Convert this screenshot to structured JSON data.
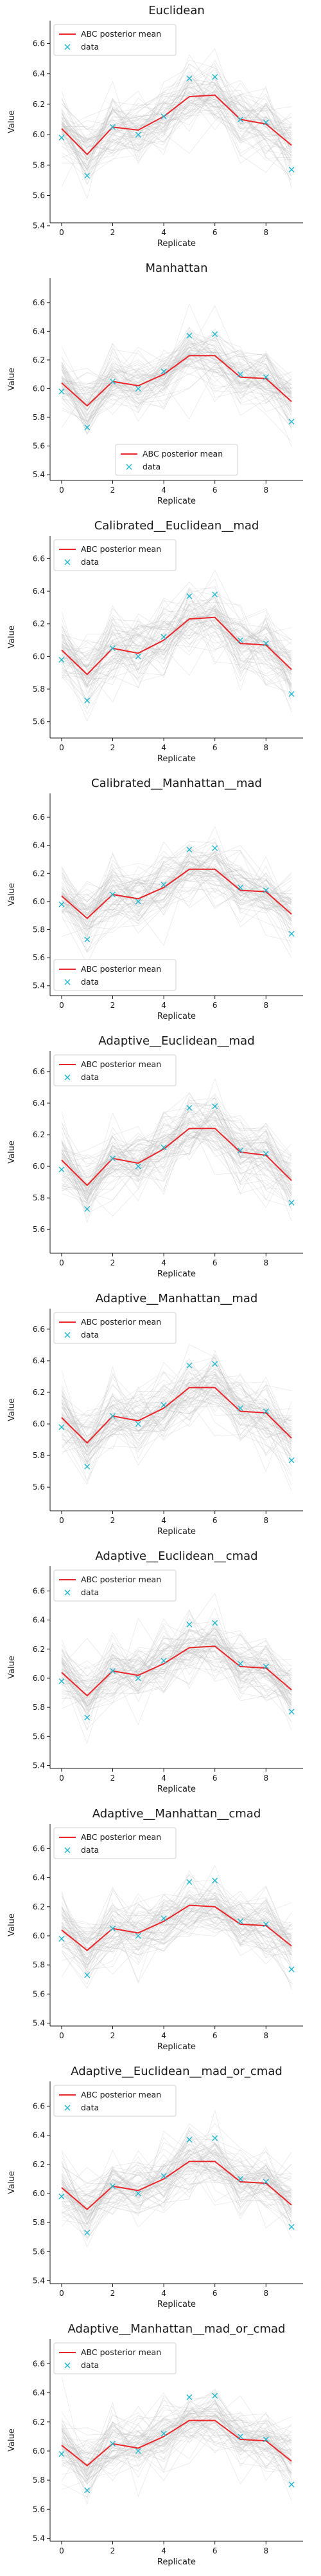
{
  "colors": {
    "mean_line": "#e8262b",
    "data_marker": "#22b8cf",
    "background_lines": "#bfbfbf"
  },
  "legend": {
    "mean_label": "ABC posterior mean",
    "data_label": "data"
  },
  "chart_data": [
    {
      "type": "line",
      "title": "Euclidean",
      "xlabel": "Replicate",
      "ylabel": "Value",
      "x": [
        0,
        1,
        2,
        3,
        4,
        5,
        6,
        7,
        8,
        9
      ],
      "xticks": [
        0,
        2,
        4,
        6,
        8
      ],
      "yticks": [
        5.4,
        5.6,
        5.8,
        6.0,
        6.2,
        6.4,
        6.6
      ],
      "xlim": [
        -0.45,
        9.45
      ],
      "ylim": [
        5.42,
        6.75
      ],
      "legend_position": "upper-left",
      "grid": false,
      "series": [
        {
          "name": "ABC posterior mean",
          "values": [
            6.04,
            5.87,
            6.05,
            6.03,
            6.12,
            6.25,
            6.26,
            6.1,
            6.07,
            5.93
          ]
        },
        {
          "name": "data",
          "values": [
            5.98,
            5.73,
            6.05,
            6.0,
            6.12,
            6.37,
            6.38,
            6.1,
            6.08,
            5.77
          ]
        }
      ]
    },
    {
      "type": "line",
      "title": "Manhattan",
      "xlabel": "Replicate",
      "ylabel": "Value",
      "x": [
        0,
        1,
        2,
        3,
        4,
        5,
        6,
        7,
        8,
        9
      ],
      "xticks": [
        0,
        2,
        4,
        6,
        8
      ],
      "yticks": [
        5.4,
        5.6,
        5.8,
        6.0,
        6.2,
        6.4,
        6.6
      ],
      "xlim": [
        -0.45,
        9.45
      ],
      "ylim": [
        5.36,
        6.77
      ],
      "legend_position": "lower-center",
      "grid": false,
      "series": [
        {
          "name": "ABC posterior mean",
          "values": [
            6.04,
            5.88,
            6.05,
            6.02,
            6.1,
            6.23,
            6.23,
            6.08,
            6.07,
            5.91
          ]
        },
        {
          "name": "data",
          "values": [
            5.98,
            5.73,
            6.05,
            6.0,
            6.12,
            6.37,
            6.38,
            6.1,
            6.08,
            5.77
          ]
        }
      ]
    },
    {
      "type": "line",
      "title": "Calibrated__Euclidean__mad",
      "xlabel": "Replicate",
      "ylabel": "Value",
      "x": [
        0,
        1,
        2,
        3,
        4,
        5,
        6,
        7,
        8,
        9
      ],
      "xticks": [
        0,
        2,
        4,
        6,
        8
      ],
      "yticks": [
        5.6,
        5.8,
        6.0,
        6.2,
        6.4,
        6.6
      ],
      "xlim": [
        -0.45,
        9.45
      ],
      "ylim": [
        5.5,
        6.74
      ],
      "legend_position": "upper-left",
      "grid": false,
      "series": [
        {
          "name": "ABC posterior mean",
          "values": [
            6.04,
            5.89,
            6.05,
            6.02,
            6.1,
            6.23,
            6.24,
            6.08,
            6.07,
            5.92
          ]
        },
        {
          "name": "data",
          "values": [
            5.98,
            5.73,
            6.05,
            6.0,
            6.12,
            6.37,
            6.38,
            6.1,
            6.08,
            5.77
          ]
        }
      ]
    },
    {
      "type": "line",
      "title": "Calibrated__Manhattan__mad",
      "xlabel": "Replicate",
      "ylabel": "Value",
      "x": [
        0,
        1,
        2,
        3,
        4,
        5,
        6,
        7,
        8,
        9
      ],
      "xticks": [
        0,
        2,
        4,
        6,
        8
      ],
      "yticks": [
        5.4,
        5.6,
        5.8,
        6.0,
        6.2,
        6.4,
        6.6
      ],
      "xlim": [
        -0.45,
        9.45
      ],
      "ylim": [
        5.33,
        6.77
      ],
      "legend_position": "lower-left",
      "grid": false,
      "series": [
        {
          "name": "ABC posterior mean",
          "values": [
            6.04,
            5.88,
            6.05,
            6.02,
            6.1,
            6.23,
            6.23,
            6.08,
            6.07,
            5.91
          ]
        },
        {
          "name": "data",
          "values": [
            5.98,
            5.73,
            6.05,
            6.0,
            6.12,
            6.37,
            6.38,
            6.1,
            6.08,
            5.77
          ]
        }
      ]
    },
    {
      "type": "line",
      "title": "Adaptive__Euclidean__mad",
      "xlabel": "Replicate",
      "ylabel": "Value",
      "x": [
        0,
        1,
        2,
        3,
        4,
        5,
        6,
        7,
        8,
        9
      ],
      "xticks": [
        0,
        2,
        4,
        6,
        8
      ],
      "yticks": [
        5.6,
        5.8,
        6.0,
        6.2,
        6.4,
        6.6
      ],
      "xlim": [
        -0.45,
        9.45
      ],
      "ylim": [
        5.45,
        6.73
      ],
      "legend_position": "upper-left",
      "grid": false,
      "series": [
        {
          "name": "ABC posterior mean",
          "values": [
            6.04,
            5.88,
            6.05,
            6.02,
            6.11,
            6.24,
            6.24,
            6.09,
            6.07,
            5.91
          ]
        },
        {
          "name": "data",
          "values": [
            5.98,
            5.73,
            6.05,
            6.0,
            6.12,
            6.37,
            6.38,
            6.1,
            6.08,
            5.77
          ]
        }
      ]
    },
    {
      "type": "line",
      "title": "Adaptive__Manhattan__mad",
      "xlabel": "Replicate",
      "ylabel": "Value",
      "x": [
        0,
        1,
        2,
        3,
        4,
        5,
        6,
        7,
        8,
        9
      ],
      "xticks": [
        0,
        2,
        4,
        6,
        8
      ],
      "yticks": [
        5.6,
        5.8,
        6.0,
        6.2,
        6.4,
        6.6
      ],
      "xlim": [
        -0.45,
        9.45
      ],
      "ylim": [
        5.45,
        6.73
      ],
      "legend_position": "upper-left",
      "grid": false,
      "series": [
        {
          "name": "ABC posterior mean",
          "values": [
            6.04,
            5.88,
            6.05,
            6.02,
            6.1,
            6.23,
            6.23,
            6.08,
            6.07,
            5.91
          ]
        },
        {
          "name": "data",
          "values": [
            5.98,
            5.73,
            6.05,
            6.0,
            6.12,
            6.37,
            6.38,
            6.1,
            6.08,
            5.77
          ]
        }
      ]
    },
    {
      "type": "line",
      "title": "Adaptive__Euclidean__cmad",
      "xlabel": "Replicate",
      "ylabel": "Value",
      "x": [
        0,
        1,
        2,
        3,
        4,
        5,
        6,
        7,
        8,
        9
      ],
      "xticks": [
        0,
        2,
        4,
        6,
        8
      ],
      "yticks": [
        5.4,
        5.6,
        5.8,
        6.0,
        6.2,
        6.4,
        6.6
      ],
      "xlim": [
        -0.45,
        9.45
      ],
      "ylim": [
        5.38,
        6.77
      ],
      "legend_position": "upper-left",
      "grid": false,
      "series": [
        {
          "name": "ABC posterior mean",
          "values": [
            6.04,
            5.88,
            6.05,
            6.02,
            6.1,
            6.21,
            6.22,
            6.08,
            6.07,
            5.92
          ]
        },
        {
          "name": "data",
          "values": [
            5.98,
            5.73,
            6.05,
            6.0,
            6.12,
            6.37,
            6.38,
            6.1,
            6.08,
            5.77
          ]
        }
      ]
    },
    {
      "type": "line",
      "title": "Adaptive__Manhattan__cmad",
      "xlabel": "Replicate",
      "ylabel": "Value",
      "x": [
        0,
        1,
        2,
        3,
        4,
        5,
        6,
        7,
        8,
        9
      ],
      "xticks": [
        0,
        2,
        4,
        6,
        8
      ],
      "yticks": [
        5.4,
        5.6,
        5.8,
        6.0,
        6.2,
        6.4,
        6.6
      ],
      "xlim": [
        -0.45,
        9.45
      ],
      "ylim": [
        5.38,
        6.77
      ],
      "legend_position": "upper-left",
      "grid": false,
      "series": [
        {
          "name": "ABC posterior mean",
          "values": [
            6.04,
            5.9,
            6.05,
            6.02,
            6.1,
            6.21,
            6.2,
            6.08,
            6.07,
            5.93
          ]
        },
        {
          "name": "data",
          "values": [
            5.98,
            5.73,
            6.05,
            6.0,
            6.12,
            6.37,
            6.38,
            6.1,
            6.08,
            5.77
          ]
        }
      ]
    },
    {
      "type": "line",
      "title": "Adaptive__Euclidean__mad_or_cmad",
      "xlabel": "Replicate",
      "ylabel": "Value",
      "x": [
        0,
        1,
        2,
        3,
        4,
        5,
        6,
        7,
        8,
        9
      ],
      "xticks": [
        0,
        2,
        4,
        6,
        8
      ],
      "yticks": [
        5.4,
        5.6,
        5.8,
        6.0,
        6.2,
        6.4,
        6.6
      ],
      "xlim": [
        -0.45,
        9.45
      ],
      "ylim": [
        5.38,
        6.77
      ],
      "legend_position": "upper-left",
      "grid": false,
      "series": [
        {
          "name": "ABC posterior mean",
          "values": [
            6.04,
            5.89,
            6.05,
            6.02,
            6.1,
            6.22,
            6.22,
            6.08,
            6.07,
            5.92
          ]
        },
        {
          "name": "data",
          "values": [
            5.98,
            5.73,
            6.05,
            6.0,
            6.12,
            6.37,
            6.38,
            6.1,
            6.08,
            5.77
          ]
        }
      ]
    },
    {
      "type": "line",
      "title": "Adaptive__Manhattan__mad_or_cmad",
      "xlabel": "Replicate",
      "ylabel": "Value",
      "x": [
        0,
        1,
        2,
        3,
        4,
        5,
        6,
        7,
        8,
        9
      ],
      "xticks": [
        0,
        2,
        4,
        6,
        8
      ],
      "yticks": [
        5.4,
        5.6,
        5.8,
        6.0,
        6.2,
        6.4,
        6.6
      ],
      "xlim": [
        -0.45,
        9.45
      ],
      "ylim": [
        5.38,
        6.77
      ],
      "legend_position": "upper-left",
      "grid": false,
      "series": [
        {
          "name": "ABC posterior mean",
          "values": [
            6.04,
            5.9,
            6.05,
            6.02,
            6.1,
            6.21,
            6.21,
            6.08,
            6.07,
            5.93
          ]
        },
        {
          "name": "data",
          "values": [
            5.98,
            5.73,
            6.05,
            6.0,
            6.12,
            6.37,
            6.38,
            6.1,
            6.08,
            5.77
          ]
        }
      ]
    }
  ]
}
